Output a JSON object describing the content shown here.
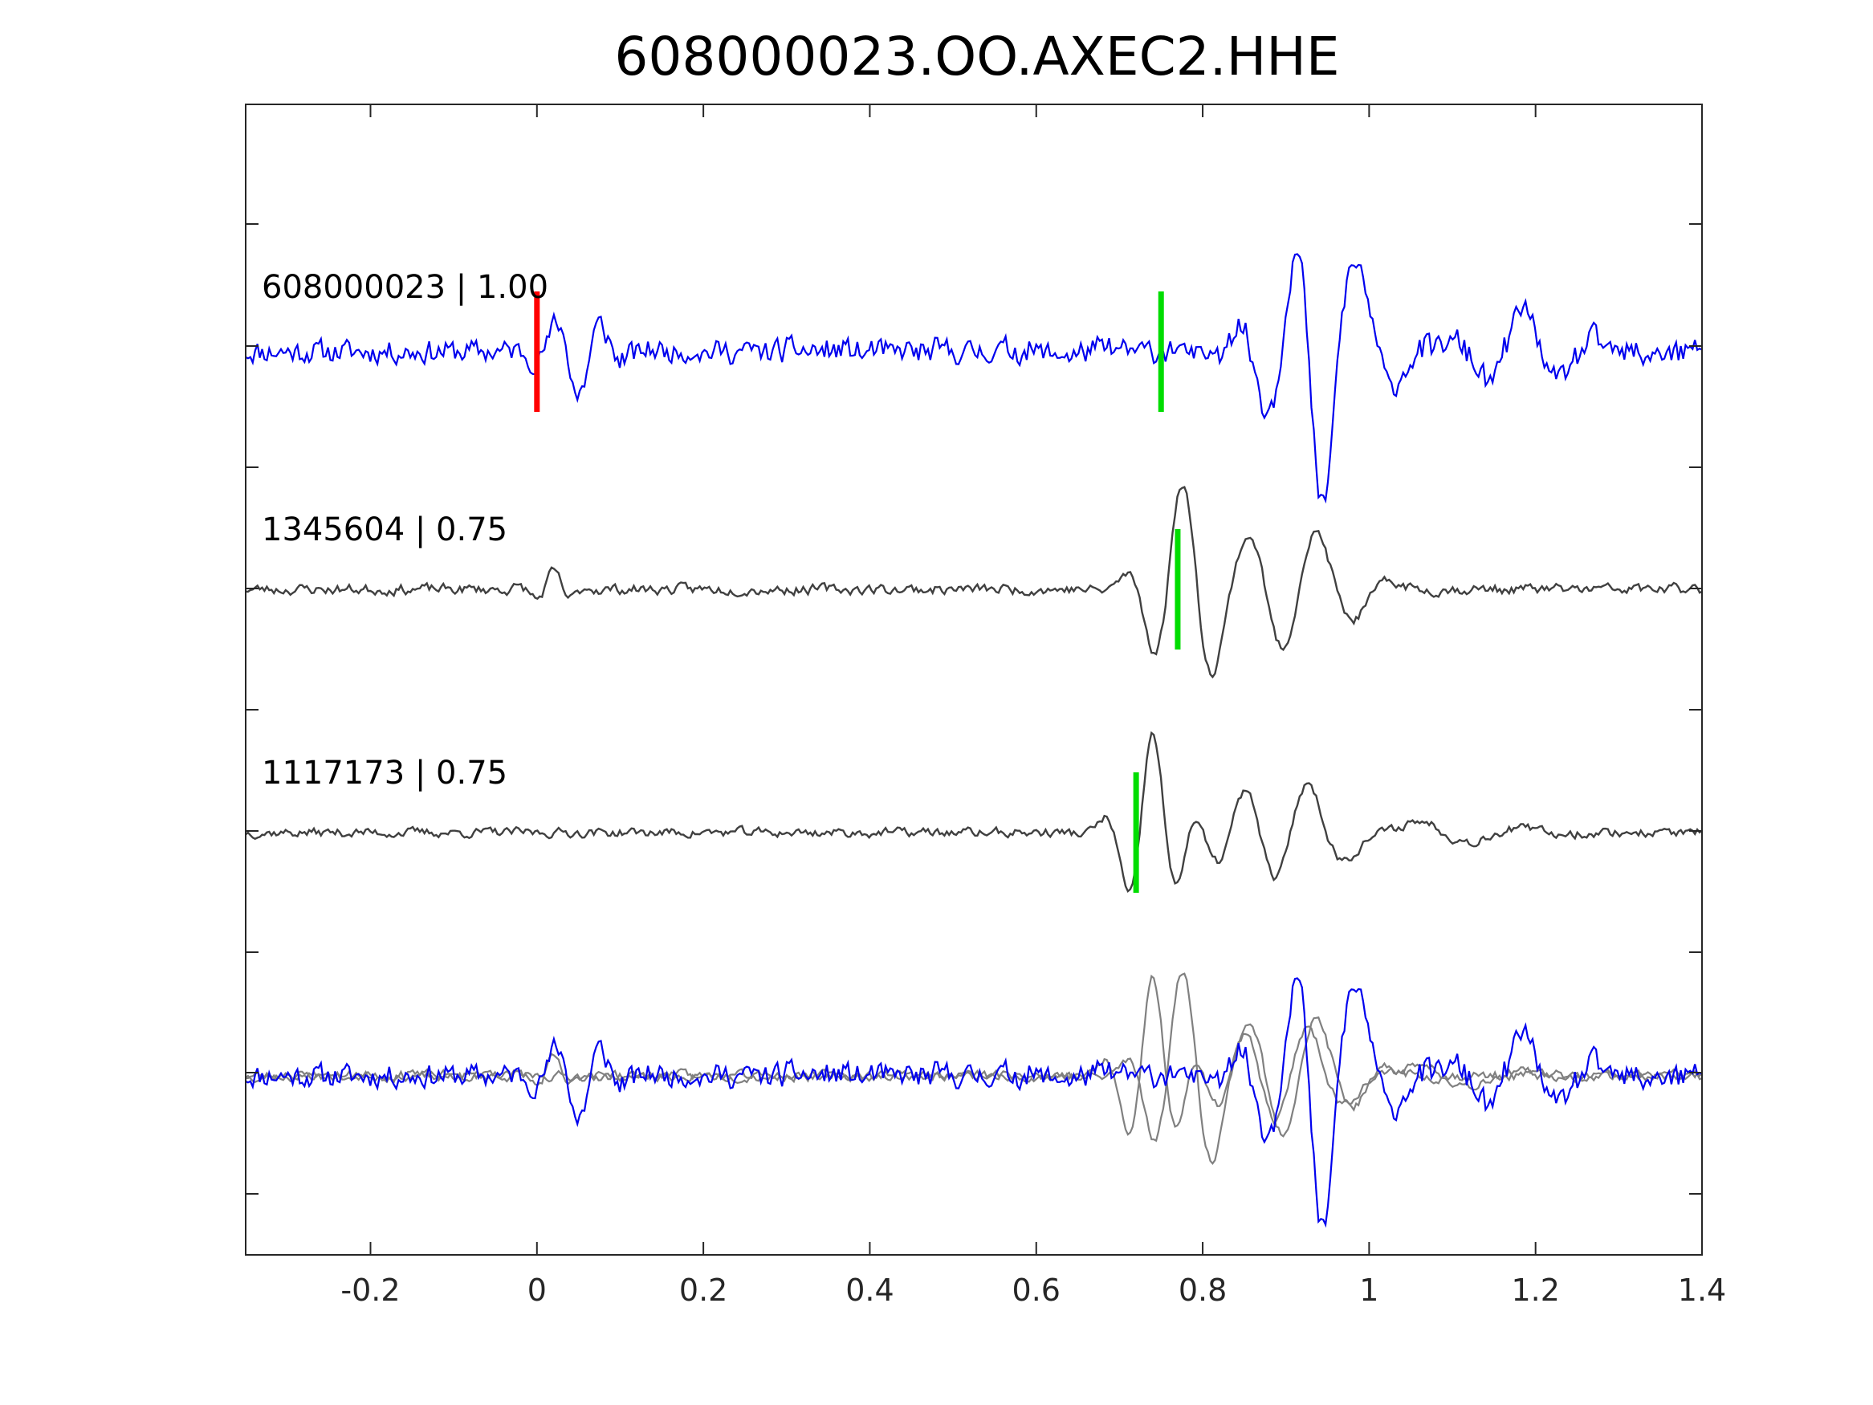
{
  "chart_data": {
    "type": "line",
    "title": "608000023.OO.AXEC2.HHE",
    "xlabel": "",
    "ylabel": "",
    "xlim": [
      -0.35,
      1.4
    ],
    "xticks": [
      "-0.2",
      "0",
      "0.2",
      "0.4",
      "0.6",
      "0.8",
      "1",
      "1.2",
      "1.4"
    ],
    "yticks_labeled": false,
    "grid": false,
    "colors": {
      "target": "#0000ee",
      "template": "#404040",
      "overlay_template": "#808080",
      "p_pick": "#ff0000",
      "s_pick": "#00dd00",
      "axes": "#262626"
    },
    "traces": [
      {
        "label": "608000023 | 1.00",
        "event_id": "608000023",
        "correlation": 1.0,
        "role": "target",
        "p_pick_time": 0.0,
        "s_pick_time": 0.75
      },
      {
        "label": "1345604 | 0.75",
        "event_id": "1345604",
        "correlation": 0.75,
        "role": "template",
        "s_pick_time": 0.77
      },
      {
        "label": "1117173 | 0.75",
        "event_id": "1117173",
        "correlation": 0.75,
        "role": "template",
        "s_pick_time": 0.72
      }
    ],
    "overlay": {
      "description_visible": false,
      "series": [
        "608000023",
        "1345604",
        "1117173"
      ]
    }
  }
}
